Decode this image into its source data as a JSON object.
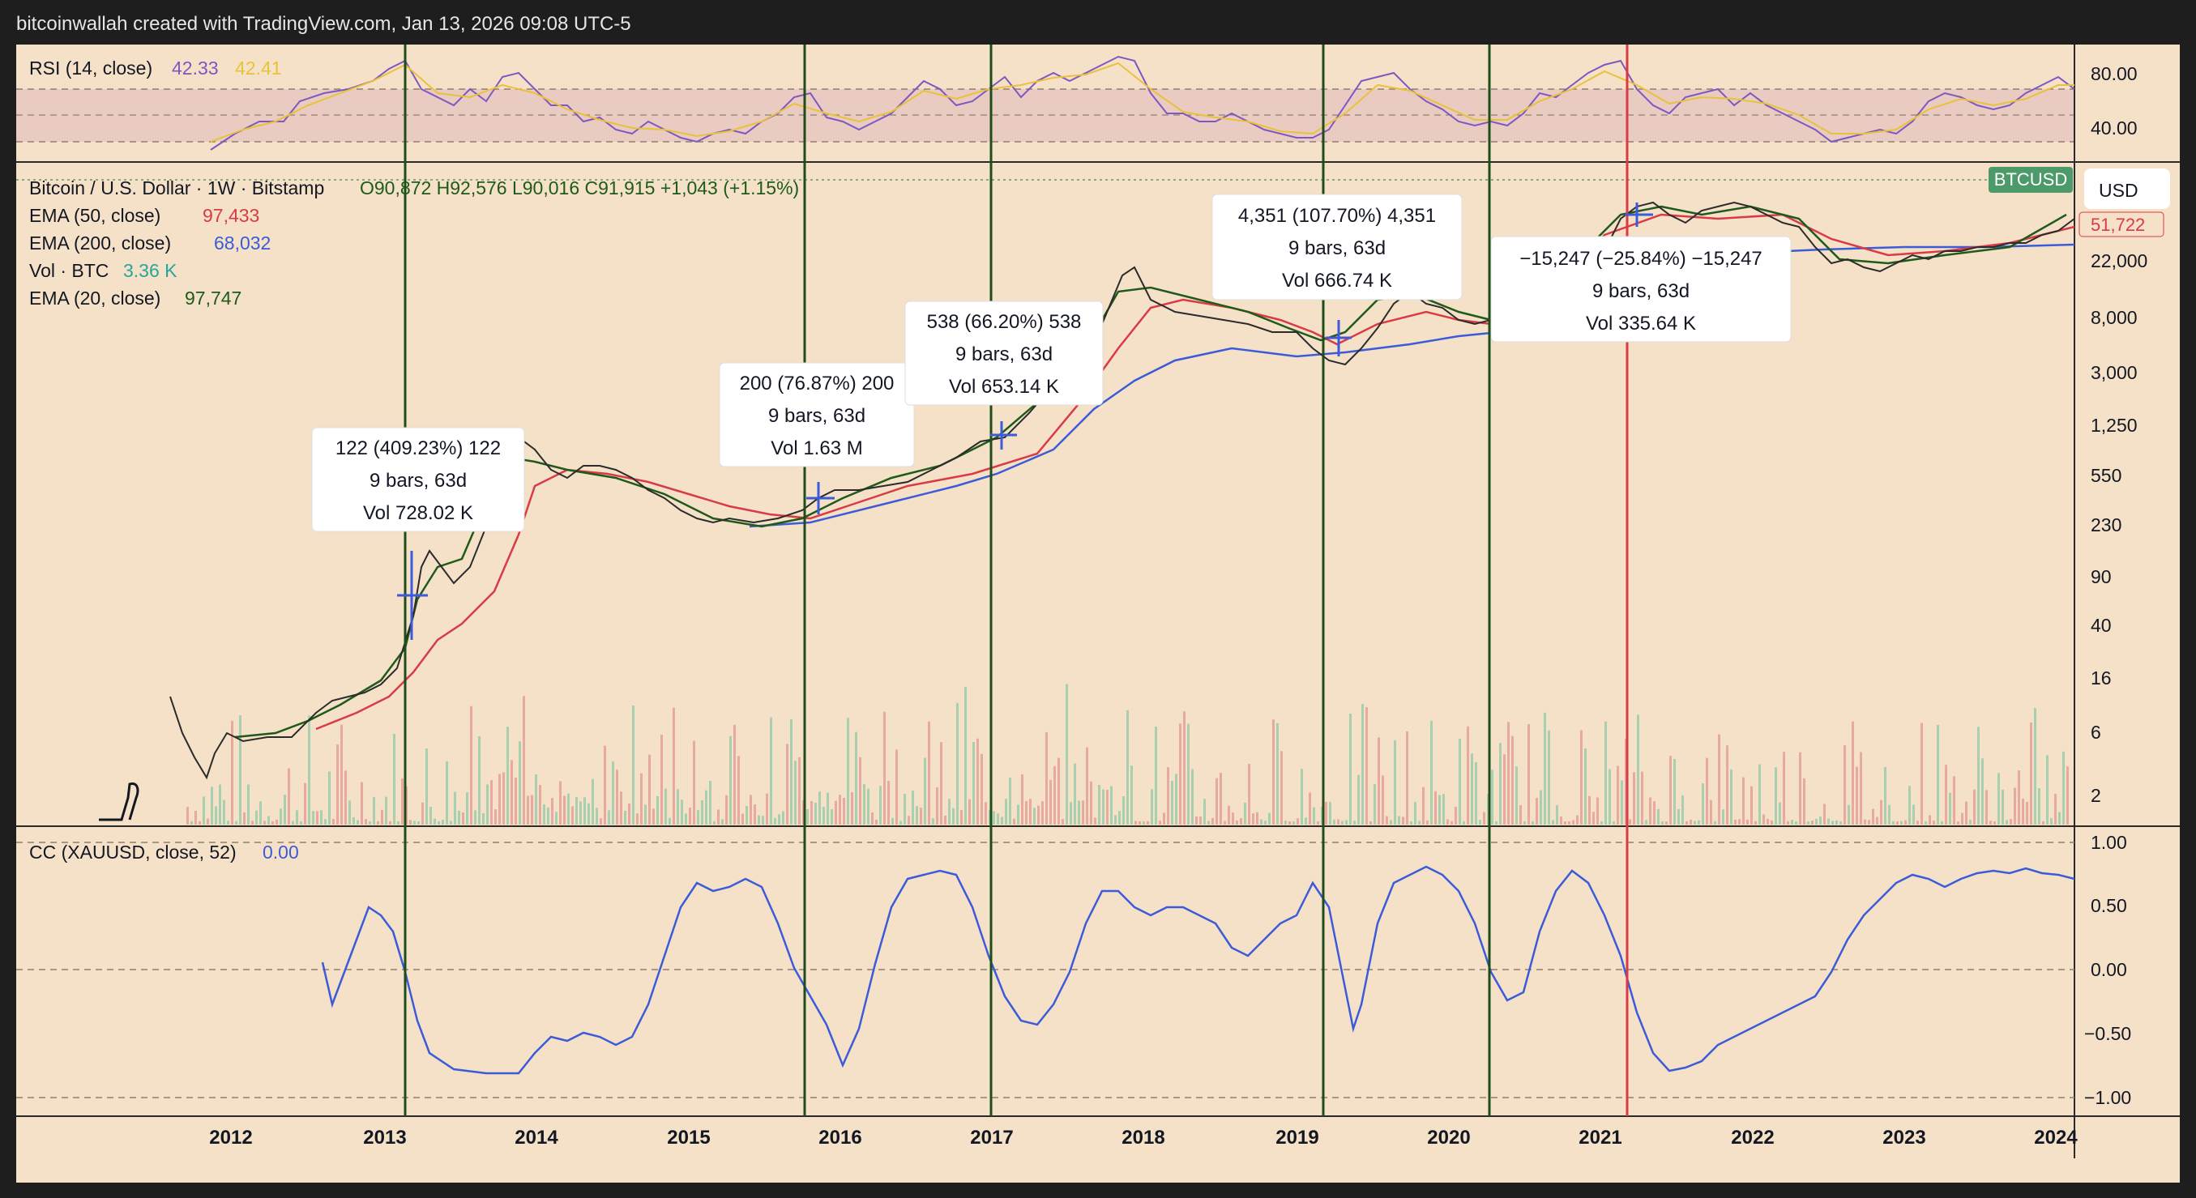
{
  "header": {
    "credit": "bitcoinwallah created with TradingView.com, Jan 13, 2026 09:08 UTC-5"
  },
  "colors": {
    "background": "#f5e1c8",
    "frame": "#1e1e1e",
    "price_line_green": "#1f4d1a",
    "price_line_red": "#d93b46",
    "ema50": "#d9404a",
    "ema200": "#3b5bd9",
    "ema20": "#1f5a1a",
    "rsi": "#7e57c2",
    "rsi_ma": "#e8c23a",
    "cc": "#3b5bd9",
    "vol_value": "#26a69a",
    "label_value_red": "#d93b46",
    "label_value_blue": "#3b5bd9"
  },
  "rsi_pane": {
    "title": "RSI (14, close)",
    "value1": "42.33",
    "value2": "42.41",
    "y_ticks": [
      "80.00",
      "40.00"
    ]
  },
  "main_pane": {
    "ohlc_title": "Bitcoin / U.S. Dollar · 1W · Bitstamp",
    "ohlc_values": "O90,872  H92,576  L90,016  C91,915  +1,043 (+1.15%)",
    "indicators": [
      {
        "name": "EMA (50, close)",
        "value": "97,433",
        "color": "#d93b46"
      },
      {
        "name": "EMA (200, close)",
        "value": "68,032",
        "color": "#3b5bd9"
      },
      {
        "name": "Vol · BTC",
        "value": "3.36 K",
        "color": "#26a69a"
      },
      {
        "name": "EMA (20, close)",
        "value": "97,747",
        "color": "#1f5a1a"
      }
    ],
    "symbol_badge": "BTCUSD",
    "currency_button": "USD",
    "price_badge": "51,722",
    "y_ticks": [
      "22,000",
      "8,000",
      "3,000",
      "1,250",
      "550",
      "230",
      "90",
      "40",
      "16",
      "6",
      "2"
    ]
  },
  "cc_pane": {
    "title": "CC (XAUUSD, close, 52)",
    "value": "0.00",
    "y_ticks": [
      "1.00",
      "0.50",
      "0.00",
      "−0.50",
      "−1.00"
    ]
  },
  "x_axis": {
    "labels": [
      "2012",
      "2013",
      "2014",
      "2015",
      "2016",
      "2017",
      "2018",
      "2019",
      "2020",
      "2021",
      "2022",
      "2023",
      "2024"
    ]
  },
  "annotations": [
    {
      "line1": "122 (409.23%) 122",
      "line2": "9 bars, 63d",
      "line3": "Vol 728.02 K"
    },
    {
      "line1": "200 (76.87%) 200",
      "line2": "9 bars, 63d",
      "line3": "Vol 1.63 M"
    },
    {
      "line1": "538 (66.20%) 538",
      "line2": "9 bars, 63d",
      "line3": "Vol 653.14 K"
    },
    {
      "line1": "4,351 (107.70%) 4,351",
      "line2": "9 bars, 63d",
      "line3": "Vol 666.74 K"
    },
    {
      "line1": "−15,247 (−25.84%) −15,247",
      "line2": "9 bars, 63d",
      "line3": "Vol 335.64 K"
    }
  ],
  "vertical_markers": [
    {
      "color": "green"
    },
    {
      "color": "green"
    },
    {
      "color": "green"
    },
    {
      "color": "green"
    },
    {
      "color": "green"
    },
    {
      "color": "red"
    }
  ]
}
